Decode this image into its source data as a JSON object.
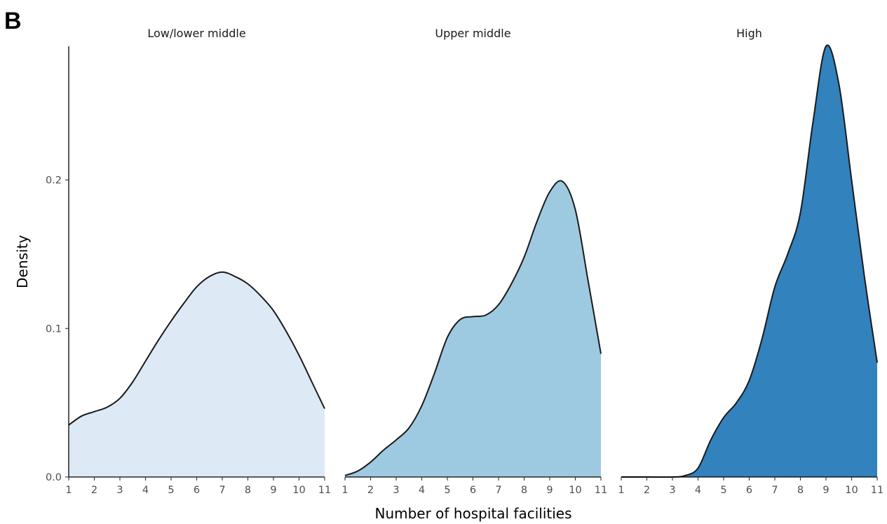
{
  "panel_label": "B",
  "chart_data": {
    "type": "area",
    "subtype": "density",
    "xlabel": "Number of hospital facilities",
    "ylabel": "Density",
    "xlim": [
      1,
      11
    ],
    "ylim": [
      0,
      0.29
    ],
    "x_ticks": [
      1,
      2,
      3,
      4,
      5,
      6,
      7,
      8,
      9,
      10,
      11
    ],
    "y_ticks": [
      0.0,
      0.1,
      0.2
    ],
    "y_tick_labels": [
      "0.0",
      "0.1",
      "0.2"
    ],
    "grid": false,
    "legend": "none",
    "panels": [
      {
        "name": "Low/lower middle",
        "color": "#dde9f5",
        "x": [
          1,
          1.5,
          2,
          2.5,
          3,
          3.5,
          4,
          4.5,
          5,
          5.5,
          6,
          6.5,
          7,
          7.5,
          8,
          8.5,
          9,
          9.5,
          10,
          10.5,
          11
        ],
        "y": [
          0.035,
          0.041,
          0.044,
          0.047,
          0.053,
          0.064,
          0.078,
          0.092,
          0.105,
          0.117,
          0.128,
          0.135,
          0.138,
          0.135,
          0.13,
          0.122,
          0.112,
          0.098,
          0.082,
          0.064,
          0.046
        ]
      },
      {
        "name": "Upper middle",
        "color": "#9ecae1",
        "x": [
          1,
          1.5,
          2,
          2.5,
          3,
          3.5,
          4,
          4.5,
          5,
          5.5,
          6,
          6.5,
          7,
          7.5,
          8,
          8.5,
          9,
          9.5,
          10,
          10.5,
          11
        ],
        "y": [
          0.001,
          0.004,
          0.01,
          0.018,
          0.025,
          0.033,
          0.048,
          0.07,
          0.094,
          0.106,
          0.108,
          0.109,
          0.116,
          0.13,
          0.148,
          0.172,
          0.192,
          0.199,
          0.18,
          0.132,
          0.083
        ]
      },
      {
        "name": "High",
        "color": "#3182bd",
        "x": [
          1,
          2,
          3,
          3.5,
          4,
          4.5,
          5,
          5.5,
          6,
          6.5,
          7,
          7.5,
          8,
          8.5,
          9,
          9.5,
          10,
          10.5,
          11
        ],
        "y": [
          0.0,
          0.0,
          0.0,
          0.001,
          0.006,
          0.025,
          0.04,
          0.05,
          0.065,
          0.093,
          0.128,
          0.15,
          0.178,
          0.24,
          0.29,
          0.265,
          0.2,
          0.135,
          0.077
        ]
      }
    ]
  }
}
